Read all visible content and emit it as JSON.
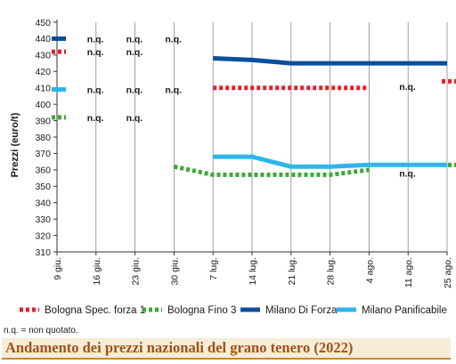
{
  "title": "Andamento dei prezzi nazionali del grano tenero (2022)",
  "note": "n.q. = non quotato.",
  "chart_data": {
    "type": "line",
    "ylabel": "Prezzi (euro/t)",
    "xlabel": "",
    "ylim": [
      310,
      450
    ],
    "yticks": [
      310,
      320,
      330,
      340,
      350,
      360,
      370,
      380,
      390,
      400,
      410,
      420,
      430,
      440,
      450
    ],
    "categories": [
      "9 giu.",
      "16 giu.",
      "23 giu.",
      "30 giu.",
      "7 lug.",
      "14 lug.",
      "21 lug.",
      "28 lug.",
      "4 ago.",
      "11 ago.",
      "25 ago."
    ],
    "grid": "vertical",
    "legend_position": "bottom",
    "series": [
      {
        "name": "Bologna Spec. forza 1",
        "color": "#e3202a",
        "style": "dotted",
        "values": [
          432,
          null,
          null,
          null,
          410,
          410,
          410,
          410,
          410,
          null,
          414
        ]
      },
      {
        "name": "Bologna Fino 3",
        "color": "#3aaa35",
        "style": "dotted",
        "values": [
          392,
          null,
          null,
          362,
          357,
          357,
          357,
          357,
          360,
          null,
          363
        ]
      },
      {
        "name": "Milano Di Forza",
        "color": "#0b4f9c",
        "style": "solid",
        "values": [
          440,
          null,
          null,
          null,
          428,
          427,
          425,
          425,
          425,
          425,
          425
        ]
      },
      {
        "name": "Milano Panificabile",
        "color": "#2eb6ea",
        "style": "solid",
        "values": [
          409,
          null,
          null,
          null,
          368,
          368,
          362,
          362,
          363,
          363,
          363
        ]
      }
    ],
    "annotations": [
      {
        "text": "n.q.",
        "x": "16 giu.",
        "y": 440
      },
      {
        "text": "n.q.",
        "x": "23 giu.",
        "y": 440
      },
      {
        "text": "n.q.",
        "x": "30 giu.",
        "y": 440
      },
      {
        "text": "n.q.",
        "x": "16 giu.",
        "y": 432
      },
      {
        "text": "n.q.",
        "x": "23 giu.",
        "y": 432
      },
      {
        "text": "n.q.",
        "x": "16 giu.",
        "y": 409
      },
      {
        "text": "n.q.",
        "x": "23 giu.",
        "y": 409
      },
      {
        "text": "n.q.",
        "x": "30 giu.",
        "y": 409
      },
      {
        "text": "n.q.",
        "x": "16 giu.",
        "y": 392
      },
      {
        "text": "n.q.",
        "x": "23 giu.",
        "y": 392
      },
      {
        "text": "n.q.",
        "x": "11 ago.",
        "y": 411
      },
      {
        "text": "n.q.",
        "x": "11 ago.",
        "y": 358
      }
    ]
  }
}
